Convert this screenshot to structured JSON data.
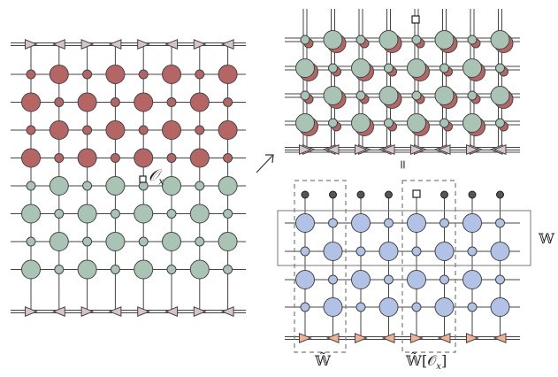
{
  "labels": {
    "operator": "𝒪",
    "operator_sub": "x",
    "equals": "=",
    "w_right": "𝕎",
    "w_tilde": "𝕎̃",
    "w_tilde_op": "𝕎̃[𝒪",
    "w_tilde_op_sub": "x",
    "w_tilde_op_close": "]"
  },
  "colors": {
    "red": "#b66565",
    "green": "#a9c4b5",
    "blue": "#b2c2e6",
    "pink_triangle": "#d6c4c7",
    "orange_triangle": "#f2b195",
    "line": "#444444",
    "dashed_box": "#7a7a7a"
  }
}
